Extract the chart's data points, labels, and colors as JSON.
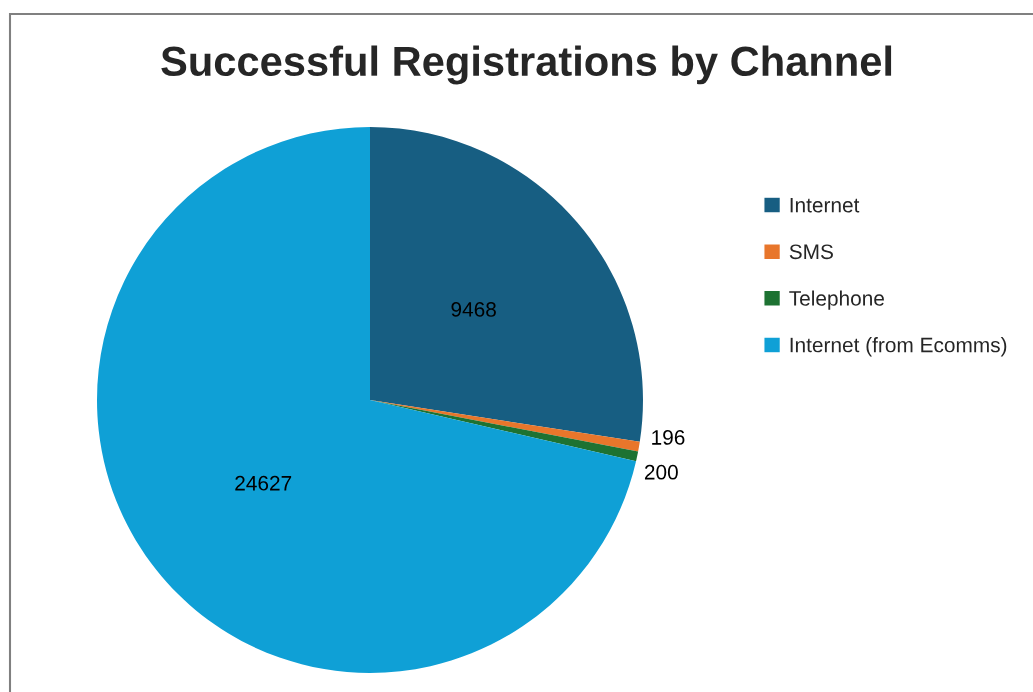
{
  "chart_data": {
    "type": "pie",
    "title": "Successful Registrations by Channel",
    "categories": [
      "Internet",
      "SMS",
      "Telephone",
      "Internet (from Ecomms)"
    ],
    "values": [
      9468,
      196,
      200,
      24627
    ],
    "colors": [
      "#175e82",
      "#e8762b",
      "#1d7232",
      "#0fa0d6"
    ],
    "data_labels": true,
    "legend": "right"
  }
}
